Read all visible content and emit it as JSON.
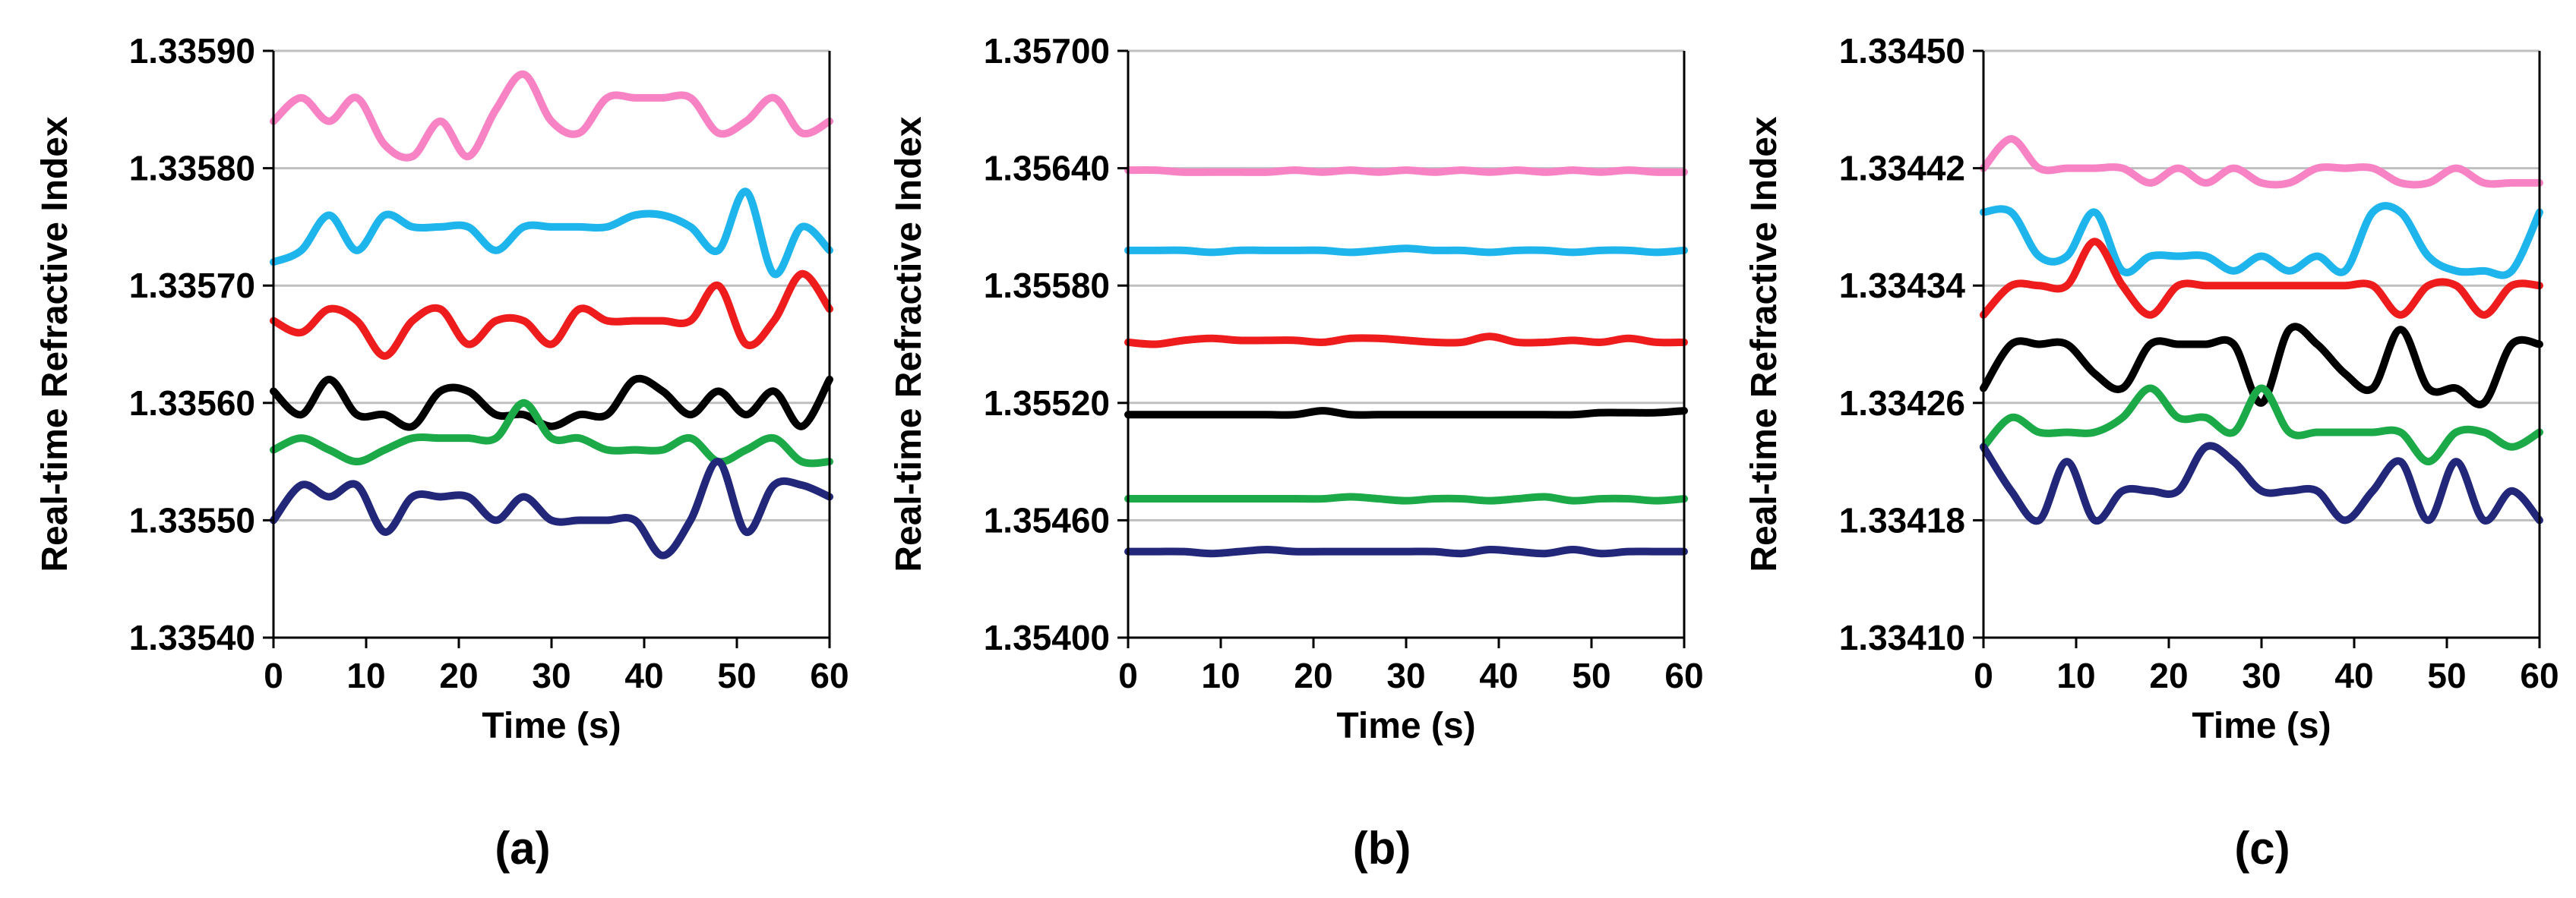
{
  "colors": {
    "pink": "#F783C4",
    "cyan": "#1EB4EC",
    "red": "#EE1C1C",
    "black": "#000000",
    "green": "#1BAA47",
    "navy": "#22277A",
    "grid": "#BFBFBF"
  },
  "chart_data": [
    {
      "type": "line",
      "panel_label": "(a)",
      "xlabel": "Time (s)",
      "ylabel": "Real-time Refractive Index",
      "xlim": [
        0,
        60
      ],
      "ylim": [
        1.3354,
        1.3359
      ],
      "xticks": [
        0,
        10,
        20,
        30,
        40,
        50,
        60
      ],
      "yticks": [
        1.3354,
        1.3355,
        1.3356,
        1.3357,
        1.3358,
        1.3359
      ],
      "ytick_labels": [
        "1.33540",
        "1.33550",
        "1.33560",
        "1.33570",
        "1.33580",
        "1.33590"
      ],
      "x": [
        0,
        3,
        6,
        9,
        12,
        15,
        18,
        21,
        24,
        27,
        30,
        33,
        36,
        39,
        42,
        45,
        48,
        51,
        54,
        57,
        60
      ],
      "series": [
        {
          "name": "pink",
          "color": "pink",
          "values": [
            1.33584,
            1.33586,
            1.33584,
            1.33586,
            1.33582,
            1.33581,
            1.33584,
            1.33581,
            1.33585,
            1.33588,
            1.33584,
            1.33583,
            1.33586,
            1.33586,
            1.33586,
            1.33586,
            1.33583,
            1.33584,
            1.33586,
            1.33583,
            1.33584
          ]
        },
        {
          "name": "cyan",
          "color": "cyan",
          "values": [
            1.33572,
            1.33573,
            1.33576,
            1.33573,
            1.33576,
            1.33575,
            1.33575,
            1.33575,
            1.33573,
            1.33575,
            1.33575,
            1.33575,
            1.33575,
            1.33576,
            1.33576,
            1.33575,
            1.33573,
            1.33578,
            1.33571,
            1.33575,
            1.33573
          ]
        },
        {
          "name": "red",
          "color": "red",
          "values": [
            1.33567,
            1.33566,
            1.33568,
            1.33567,
            1.33564,
            1.33567,
            1.33568,
            1.33565,
            1.33567,
            1.33567,
            1.33565,
            1.33568,
            1.33567,
            1.33567,
            1.33567,
            1.33567,
            1.3357,
            1.33565,
            1.33567,
            1.33571,
            1.33568
          ]
        },
        {
          "name": "black",
          "color": "black",
          "values": [
            1.33561,
            1.33559,
            1.33562,
            1.33559,
            1.33559,
            1.33558,
            1.33561,
            1.33561,
            1.33559,
            1.33559,
            1.33558,
            1.33559,
            1.33559,
            1.33562,
            1.33561,
            1.33559,
            1.33561,
            1.33559,
            1.33561,
            1.33558,
            1.33562
          ]
        },
        {
          "name": "green",
          "color": "green",
          "values": [
            1.33556,
            1.33557,
            1.33556,
            1.33555,
            1.33556,
            1.33557,
            1.33557,
            1.33557,
            1.33557,
            1.3356,
            1.33557,
            1.33557,
            1.33556,
            1.33556,
            1.33556,
            1.33557,
            1.33555,
            1.33556,
            1.33557,
            1.33555,
            1.33555
          ]
        },
        {
          "name": "navy",
          "color": "navy",
          "values": [
            1.3355,
            1.33553,
            1.33552,
            1.33553,
            1.33549,
            1.33552,
            1.33552,
            1.33552,
            1.3355,
            1.33552,
            1.3355,
            1.3355,
            1.3355,
            1.3355,
            1.33547,
            1.3355,
            1.33555,
            1.33549,
            1.33553,
            1.33553,
            1.33552
          ]
        }
      ]
    },
    {
      "type": "line",
      "panel_label": "(b)",
      "xlabel": "Time (s)",
      "ylabel": "Real-time Refractive Index",
      "xlim": [
        0,
        60
      ],
      "ylim": [
        1.354,
        1.357
      ],
      "xticks": [
        0,
        10,
        20,
        30,
        40,
        50,
        60
      ],
      "yticks": [
        1.354,
        1.3546,
        1.3552,
        1.3558,
        1.3564,
        1.357
      ],
      "ytick_labels": [
        "1.35400",
        "1.35460",
        "1.35520",
        "1.35580",
        "1.35640",
        "1.35700"
      ],
      "x": [
        0,
        3,
        6,
        9,
        12,
        15,
        18,
        21,
        24,
        27,
        30,
        33,
        36,
        39,
        42,
        45,
        48,
        51,
        54,
        57,
        60
      ],
      "series": [
        {
          "name": "pink",
          "color": "pink",
          "values": [
            1.35639,
            1.35639,
            1.35638,
            1.35638,
            1.35638,
            1.35638,
            1.35639,
            1.35638,
            1.35639,
            1.35638,
            1.35639,
            1.35638,
            1.35639,
            1.35638,
            1.35639,
            1.35638,
            1.35639,
            1.35638,
            1.35639,
            1.35638,
            1.35638
          ]
        },
        {
          "name": "cyan",
          "color": "cyan",
          "values": [
            1.35598,
            1.35598,
            1.35598,
            1.35597,
            1.35598,
            1.35598,
            1.35598,
            1.35598,
            1.35597,
            1.35598,
            1.35599,
            1.35598,
            1.35598,
            1.35597,
            1.35598,
            1.35598,
            1.35597,
            1.35598,
            1.35598,
            1.35597,
            1.35598
          ]
        },
        {
          "name": "red",
          "color": "red",
          "values": [
            1.35551,
            1.3555,
            1.35552,
            1.35553,
            1.35552,
            1.35552,
            1.35552,
            1.35551,
            1.35553,
            1.35553,
            1.35552,
            1.35551,
            1.35551,
            1.35554,
            1.35551,
            1.35551,
            1.35552,
            1.35551,
            1.35553,
            1.35551,
            1.35551
          ]
        },
        {
          "name": "black",
          "color": "black",
          "values": [
            1.35514,
            1.35514,
            1.35514,
            1.35514,
            1.35514,
            1.35514,
            1.35514,
            1.35516,
            1.35514,
            1.35514,
            1.35514,
            1.35514,
            1.35514,
            1.35514,
            1.35514,
            1.35514,
            1.35514,
            1.35515,
            1.35515,
            1.35515,
            1.35516
          ]
        },
        {
          "name": "green",
          "color": "green",
          "values": [
            1.35471,
            1.35471,
            1.35471,
            1.35471,
            1.35471,
            1.35471,
            1.35471,
            1.35471,
            1.35472,
            1.35471,
            1.3547,
            1.35471,
            1.35471,
            1.3547,
            1.35471,
            1.35472,
            1.3547,
            1.35471,
            1.35471,
            1.3547,
            1.35471
          ]
        },
        {
          "name": "navy",
          "color": "navy",
          "values": [
            1.35444,
            1.35444,
            1.35444,
            1.35443,
            1.35444,
            1.35445,
            1.35444,
            1.35444,
            1.35444,
            1.35444,
            1.35444,
            1.35444,
            1.35443,
            1.35445,
            1.35444,
            1.35443,
            1.35445,
            1.35443,
            1.35444,
            1.35444,
            1.35444
          ]
        }
      ]
    },
    {
      "type": "line",
      "panel_label": "(c)",
      "xlabel": "Time (s)",
      "ylabel": "Real-time Refractive Index",
      "xlim": [
        0,
        60
      ],
      "ylim": [
        1.3341,
        1.3345
      ],
      "xticks": [
        0,
        10,
        20,
        30,
        40,
        50,
        60
      ],
      "yticks": [
        1.3341,
        1.33418,
        1.33426,
        1.33434,
        1.33442,
        1.3345
      ],
      "ytick_labels": [
        "1.33410",
        "1.33418",
        "1.33426",
        "1.33434",
        "1.33442",
        "1.33450"
      ],
      "x": [
        0,
        3,
        6,
        9,
        12,
        15,
        18,
        21,
        24,
        27,
        30,
        33,
        36,
        39,
        42,
        45,
        48,
        51,
        54,
        57,
        60
      ],
      "series": [
        {
          "name": "pink",
          "color": "pink",
          "values": [
            1.33442,
            1.33444,
            1.33442,
            1.33442,
            1.33442,
            1.33442,
            1.33441,
            1.33442,
            1.33441,
            1.33442,
            1.33441,
            1.33441,
            1.33442,
            1.33442,
            1.33442,
            1.33441,
            1.33441,
            1.33442,
            1.33441,
            1.33441,
            1.33441
          ]
        },
        {
          "name": "cyan",
          "color": "cyan",
          "values": [
            1.33439,
            1.33439,
            1.33436,
            1.33436,
            1.33439,
            1.33435,
            1.33436,
            1.33436,
            1.33436,
            1.33435,
            1.33436,
            1.33435,
            1.33436,
            1.33435,
            1.33439,
            1.33439,
            1.33436,
            1.33435,
            1.33435,
            1.33435,
            1.33439
          ]
        },
        {
          "name": "red",
          "color": "red",
          "values": [
            1.33432,
            1.33434,
            1.33434,
            1.33434,
            1.33437,
            1.33434,
            1.33432,
            1.33434,
            1.33434,
            1.33434,
            1.33434,
            1.33434,
            1.33434,
            1.33434,
            1.33434,
            1.33432,
            1.33434,
            1.33434,
            1.33432,
            1.33434,
            1.33434
          ]
        },
        {
          "name": "black",
          "color": "black",
          "values": [
            1.33427,
            1.3343,
            1.3343,
            1.3343,
            1.33428,
            1.33427,
            1.3343,
            1.3343,
            1.3343,
            1.3343,
            1.33426,
            1.33431,
            1.3343,
            1.33428,
            1.33427,
            1.33431,
            1.33427,
            1.33427,
            1.33426,
            1.3343,
            1.3343
          ]
        },
        {
          "name": "green",
          "color": "green",
          "values": [
            1.33423,
            1.33425,
            1.33424,
            1.33424,
            1.33424,
            1.33425,
            1.33427,
            1.33425,
            1.33425,
            1.33424,
            1.33427,
            1.33424,
            1.33424,
            1.33424,
            1.33424,
            1.33424,
            1.33422,
            1.33424,
            1.33424,
            1.33423,
            1.33424
          ]
        },
        {
          "name": "navy",
          "color": "navy",
          "values": [
            1.33423,
            1.3342,
            1.33418,
            1.33422,
            1.33418,
            1.3342,
            1.3342,
            1.3342,
            1.33423,
            1.33422,
            1.3342,
            1.3342,
            1.3342,
            1.33418,
            1.3342,
            1.33422,
            1.33418,
            1.33422,
            1.33418,
            1.3342,
            1.33418
          ]
        }
      ]
    }
  ]
}
